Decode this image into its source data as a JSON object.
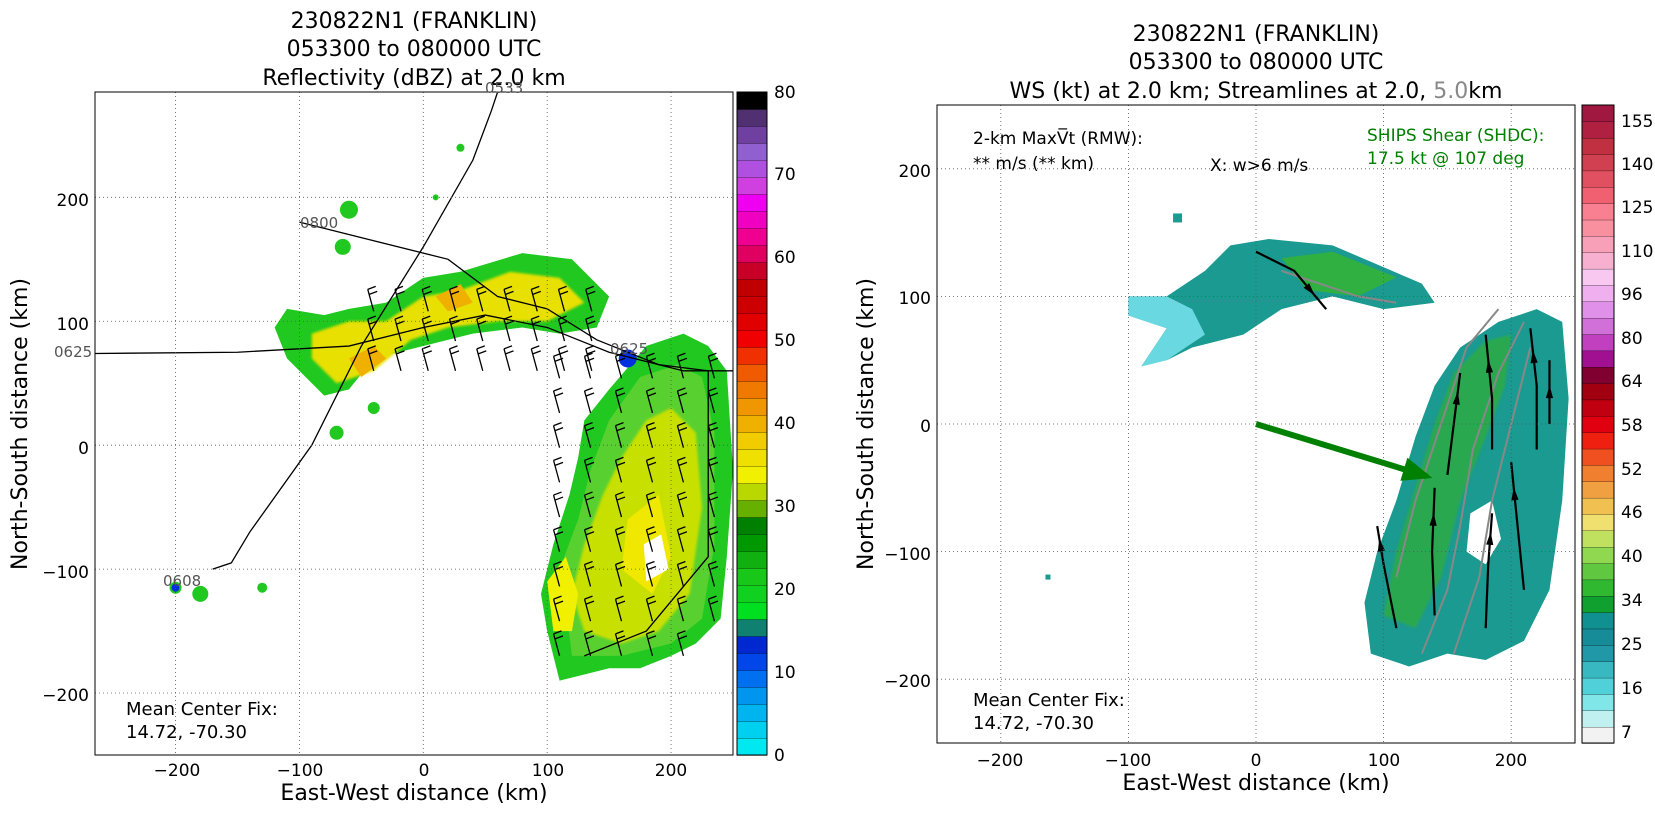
{
  "panels": [
    {
      "title": [
        "230822N1 (FRANKLIN)",
        "053300 to 080000 UTC",
        "Reflectivity (dBZ) at 2.0 km"
      ],
      "xlabel": "East-West distance (km)",
      "ylabel": "North-South distance (km)",
      "xticks": [
        "−200",
        "−100",
        "0",
        "100",
        "200"
      ],
      "yticks": [
        "−200",
        "−100",
        "0",
        "100",
        "200"
      ],
      "footer": [
        "Mean Center Fix:",
        "14.72, -70.30"
      ],
      "track_labels": [
        "0800",
        "0625",
        "0608",
        "0533",
        "0625"
      ]
    },
    {
      "title": [
        "230822N1 (FRANKLIN)",
        "053300 to 080000 UTC"
      ],
      "title_line3_parts": [
        "WS (kt) at 2.0 km; Streamlines at 2.0,",
        "5.0",
        "km"
      ],
      "xlabel": "East-West distance (km)",
      "ylabel": "North-South distance (km)",
      "xticks": [
        "−200",
        "−100",
        "0",
        "100",
        "200"
      ],
      "yticks": [
        "−200",
        "−100",
        "0",
        "100",
        "200"
      ],
      "rmw_label": "2-km MaxV̅t (RMW):",
      "rmw_value": "** m/s (** km)",
      "x_note": "X: w>6 m/s",
      "shear_label": "SHIPS Shear (SHDC):",
      "shear_value": "17.5 kt @ 107 deg",
      "footer": [
        "Mean Center Fix:",
        "14.72, -70.30"
      ]
    }
  ],
  "colorbars": [
    {
      "ticks": [
        "0",
        "10",
        "20",
        "30",
        "40",
        "50",
        "60",
        "70",
        "80"
      ],
      "colors": [
        "#00e8f0",
        "#00d0f0",
        "#00b4f0",
        "#0096f0",
        "#0070f0",
        "#0046e8",
        "#0028d0",
        "#108070",
        "#00e020",
        "#10d020",
        "#18c818",
        "#10b010",
        "#009800",
        "#008000",
        "#68b000",
        "#b8d800",
        "#f0f000",
        "#f0e000",
        "#f0cc00",
        "#f0b000",
        "#f09600",
        "#f07a00",
        "#f05a00",
        "#f03000",
        "#f00000",
        "#e00000",
        "#cc0000",
        "#c00000",
        "#c80028",
        "#e00060",
        "#f00090",
        "#f000c0",
        "#f000f0",
        "#d040e0",
        "#b050e0",
        "#9060d0",
        "#7040a0",
        "#503070",
        "#000000"
      ]
    },
    {
      "ticks": [
        "7",
        "16",
        "25",
        "34",
        "40",
        "46",
        "52",
        "58",
        "64",
        "80",
        "96",
        "110",
        "125",
        "140",
        "155"
      ],
      "colors": [
        "#f2f2f2",
        "#c0f0f0",
        "#80e6e8",
        "#50d0d8",
        "#38b8c0",
        "#2098a8",
        "#158c98",
        "#109090",
        "#10a030",
        "#30b830",
        "#60c840",
        "#90d850",
        "#c0e060",
        "#f0e070",
        "#f0c050",
        "#f0a040",
        "#f08030",
        "#f05020",
        "#f02010",
        "#e00010",
        "#c00010",
        "#a00010",
        "#800030",
        "#a01090",
        "#c040c0",
        "#d070d8",
        "#e090e8",
        "#f0b0f0",
        "#f8c8f0",
        "#f8b0d0",
        "#f8a0b8",
        "#f890a0",
        "#f88090",
        "#f06070",
        "#e05060",
        "#d04050",
        "#c03040",
        "#b02040",
        "#a01840"
      ]
    }
  ],
  "chart_data": [
    {
      "type": "heatmap",
      "title": "230822N1 (FRANKLIN) 053300 to 080000 UTC Reflectivity (dBZ) at 2.0 km",
      "xlabel": "East-West distance (km)",
      "ylabel": "North-South distance (km)",
      "xlim": [
        -265,
        250
      ],
      "ylim": [
        -250,
        285
      ],
      "grid": true,
      "colorbar": {
        "label": "dBZ",
        "min": 0,
        "max": 80
      },
      "track_points": [
        {
          "label": "0800",
          "x": -100,
          "y": 180
        },
        {
          "label": "0625",
          "x": -265,
          "y": 78
        },
        {
          "label": "0608",
          "x": -185,
          "y": -108
        },
        {
          "label": "0533",
          "x": 60,
          "y": 280
        },
        {
          "label": "0625",
          "x": 165,
          "y": 75
        }
      ]
    },
    {
      "type": "heatmap",
      "title": "230822N1 (FRANKLIN) 053300 to 080000 UTC WS (kt) at 2.0 km; Streamlines at 2.0, 5.0 km",
      "xlabel": "East-West distance (km)",
      "ylabel": "North-South distance (km)",
      "xlim": [
        -250,
        250
      ],
      "ylim": [
        -250,
        250
      ],
      "grid": true,
      "colorbar": {
        "label": "kt",
        "min": 7,
        "max": 155
      },
      "shear_vector": {
        "magnitude_kt": 17.5,
        "direction_deg": 107
      }
    }
  ]
}
